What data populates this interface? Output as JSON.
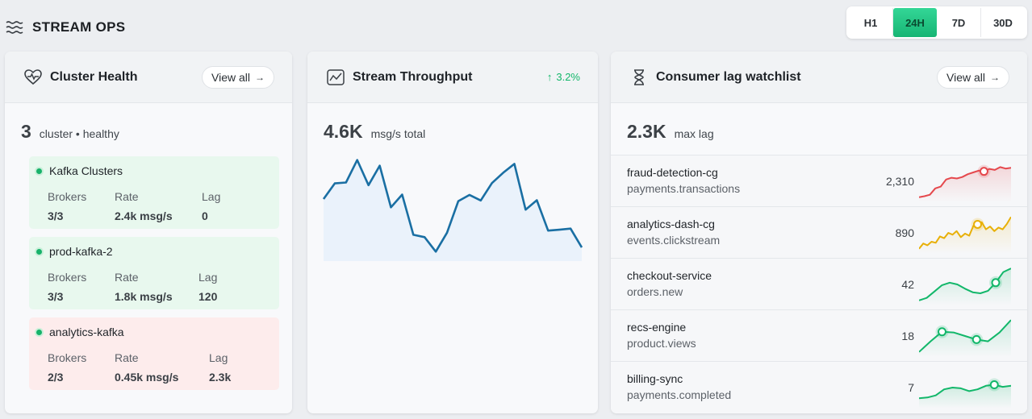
{
  "brand": {
    "title": "STREAM OPS"
  },
  "range": {
    "options": [
      "H1",
      "24H",
      "7D",
      "30D"
    ],
    "selected": "24H"
  },
  "colors": {
    "accent": "#1fc382",
    "ok": "#e8f8ee",
    "bad": "#fdecec",
    "line": "#1a6fa3"
  },
  "cluster_health": {
    "title": "Cluster Health",
    "view_all": "View all",
    "count": "3",
    "count_label": "cluster • healthy",
    "clusters": [
      {
        "name": "Kafka Clusters",
        "status": "ok",
        "brokers_label": "Brokers",
        "brokers": "3/3",
        "rate_label": "Rate",
        "rate": "2.4k msg/s",
        "lag_label": "Lag",
        "lag": "0"
      },
      {
        "name": "prod-kafka-2",
        "status": "ok",
        "brokers_label": "Brokers",
        "brokers": "3/3",
        "rate_label": "Rate",
        "rate": "1.8k msg/s",
        "lag_label": "Lag",
        "lag": "120"
      },
      {
        "name": "analytics-kafka",
        "status": "bad",
        "brokers_label": "Brokers",
        "brokers": "2/3",
        "rate_label": "Rate",
        "rate": "0.45k msg/s",
        "lag_label": "Lag",
        "lag": "2.3k"
      }
    ]
  },
  "throughput": {
    "title": "Stream Throughput",
    "trend": "3.2%",
    "value": "4.6K",
    "value_label": "msg/s total",
    "series": [
      4.1,
      4.63,
      4.66,
      5.42,
      4.57,
      5.23,
      3.82,
      4.25,
      2.89,
      2.81,
      2.32,
      2.96,
      4.03,
      4.24,
      4.05,
      4.64,
      4.99,
      5.29,
      3.74,
      4.06,
      3.03,
      3.06,
      3.1,
      2.46
    ]
  },
  "consumer_lag": {
    "title": "Consumer lag watchlist",
    "view_all": "View all",
    "value": "2.3K",
    "value_label": "max lag",
    "rows": [
      {
        "group": "fraud-detection-cg",
        "topic": "payments.transactions",
        "lag": "2,310",
        "color": "#e5484d",
        "spark": [
          0.05,
          0.08,
          0.12,
          0.3,
          0.35,
          0.55,
          0.6,
          0.58,
          0.62,
          0.7,
          0.75,
          0.8,
          0.78,
          0.85,
          0.82,
          0.9,
          0.86,
          0.88
        ],
        "marker": 12
      },
      {
        "group": "analytics-dash-cg",
        "topic": "events.clickstream",
        "lag": "890",
        "color": "#e8b008",
        "spark": [
          0.05,
          0.2,
          0.15,
          0.25,
          0.22,
          0.4,
          0.35,
          0.5,
          0.45,
          0.55,
          0.38,
          0.48,
          0.42,
          0.7,
          0.74,
          0.8,
          0.6,
          0.68,
          0.55,
          0.65,
          0.6,
          0.75,
          0.95
        ],
        "marker": 14
      },
      {
        "group": "checkout-service",
        "topic": "orders.new",
        "lag": "42",
        "color": "#12b76a",
        "spark": [
          0.05,
          0.12,
          0.3,
          0.48,
          0.55,
          0.5,
          0.38,
          0.28,
          0.25,
          0.32,
          0.55,
          0.85,
          0.95
        ],
        "marker": 10
      },
      {
        "group": "recs-engine",
        "topic": "product.views",
        "lag": "18",
        "color": "#12b76a",
        "spark": [
          0.05,
          0.35,
          0.62,
          0.6,
          0.5,
          0.4,
          0.35,
          0.6,
          0.95
        ],
        "marker": 2,
        "marker2": 5
      },
      {
        "group": "billing-sync",
        "topic": "payments.completed",
        "lag": "7",
        "color": "#12b76a",
        "spark": [
          0.2,
          0.22,
          0.28,
          0.45,
          0.5,
          0.48,
          0.4,
          0.45,
          0.55,
          0.58,
          0.52,
          0.55
        ],
        "marker": 9
      }
    ]
  }
}
